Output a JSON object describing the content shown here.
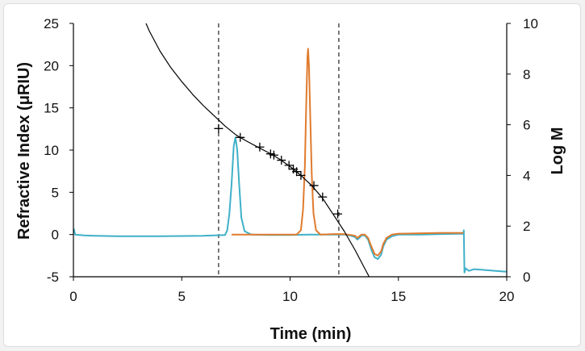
{
  "chart_data": {
    "type": "line",
    "title": "",
    "xlabel": "Time (min)",
    "ylabel_left": "Refractive Index (μRIU)",
    "ylabel_right": "Log M",
    "xlim": [
      0,
      20
    ],
    "ylim_left": [
      -5,
      25
    ],
    "ylim_right": [
      0,
      10
    ],
    "x_ticks": [
      "0",
      "5",
      "10",
      "15",
      "20"
    ],
    "y_left_ticks": [
      "-5",
      "0",
      "5",
      "10",
      "15",
      "20",
      "25"
    ],
    "y_right_ticks": [
      "0",
      "2",
      "4",
      "6",
      "8",
      "10"
    ],
    "grid": false,
    "legend": "none",
    "colors": {
      "blue": "#3fb0c8",
      "orange": "#e07b2e",
      "calibration": "#000000",
      "marker": "#000000",
      "dashed": "#333333"
    },
    "vertical_dashed_lines_x": [
      6.7,
      12.25
    ],
    "series": [
      {
        "axis": "left",
        "color": "#3fb0c8",
        "points": [
          [
            0,
            0.3
          ],
          [
            0.03,
            0.6
          ],
          [
            0.08,
            0
          ],
          [
            0.5,
            -0.1
          ],
          [
            1,
            -0.15
          ],
          [
            2,
            -0.2
          ],
          [
            4,
            -0.2
          ],
          [
            6,
            -0.15
          ],
          [
            7,
            -0.05
          ],
          [
            7.1,
            0.5
          ],
          [
            7.2,
            2.5
          ],
          [
            7.3,
            6
          ],
          [
            7.4,
            10.5
          ],
          [
            7.48,
            11.5
          ],
          [
            7.56,
            10
          ],
          [
            7.65,
            6
          ],
          [
            7.75,
            2
          ],
          [
            7.9,
            0.4
          ],
          [
            8.2,
            0
          ],
          [
            9,
            -0.05
          ],
          [
            10,
            -0.05
          ],
          [
            11,
            0
          ],
          [
            12,
            0
          ],
          [
            12.5,
            0
          ],
          [
            12.8,
            -0.15
          ],
          [
            13,
            -0.3
          ],
          [
            13.1,
            -0.6
          ],
          [
            13.2,
            -0.4
          ],
          [
            13.3,
            -0.1
          ],
          [
            13.45,
            -0.1
          ],
          [
            13.6,
            -0.6
          ],
          [
            13.75,
            -1.8
          ],
          [
            13.9,
            -2.7
          ],
          [
            14.05,
            -2.9
          ],
          [
            14.2,
            -2.4
          ],
          [
            14.3,
            -1.4
          ],
          [
            14.45,
            -0.6
          ],
          [
            14.7,
            -0.2
          ],
          [
            15,
            0
          ],
          [
            16,
            0
          ],
          [
            17,
            0.05
          ],
          [
            18,
            0.1
          ],
          [
            18.02,
            0.5
          ],
          [
            18.05,
            -4.5
          ],
          [
            18.1,
            -4
          ],
          [
            18.25,
            -4.3
          ],
          [
            18.5,
            -4.1
          ],
          [
            19,
            -4.2
          ],
          [
            19.5,
            -4.3
          ],
          [
            20,
            -4.4
          ]
        ]
      },
      {
        "axis": "left",
        "color": "#e07b2e",
        "points": [
          [
            7.3,
            0
          ],
          [
            9,
            0
          ],
          [
            10.3,
            0
          ],
          [
            10.5,
            0.5
          ],
          [
            10.6,
            3
          ],
          [
            10.68,
            8
          ],
          [
            10.74,
            15
          ],
          [
            10.8,
            21
          ],
          [
            10.83,
            22
          ],
          [
            10.87,
            20
          ],
          [
            10.93,
            14
          ],
          [
            11,
            7
          ],
          [
            11.08,
            2.5
          ],
          [
            11.2,
            0.5
          ],
          [
            11.4,
            0
          ],
          [
            12,
            0.05
          ],
          [
            12.5,
            0.05
          ],
          [
            12.8,
            -0.05
          ],
          [
            13,
            -0.15
          ],
          [
            13.1,
            -0.4
          ],
          [
            13.2,
            -0.2
          ],
          [
            13.3,
            0
          ],
          [
            13.45,
            0
          ],
          [
            13.6,
            -0.4
          ],
          [
            13.75,
            -1.4
          ],
          [
            13.9,
            -2.3
          ],
          [
            14.05,
            -2.5
          ],
          [
            14.2,
            -2
          ],
          [
            14.3,
            -1.1
          ],
          [
            14.45,
            -0.4
          ],
          [
            14.7,
            0
          ],
          [
            15,
            0.1
          ],
          [
            16,
            0.15
          ],
          [
            17,
            0.2
          ],
          [
            18,
            0.2
          ]
        ]
      },
      {
        "axis": "right",
        "color": "#000000",
        "points": [
          [
            3,
            10.7
          ],
          [
            3.5,
            9.7
          ],
          [
            4,
            8.9
          ],
          [
            4.5,
            8.25
          ],
          [
            5,
            7.7
          ],
          [
            5.5,
            7.2
          ],
          [
            6,
            6.75
          ],
          [
            6.5,
            6.35
          ],
          [
            7,
            5.95
          ],
          [
            7.5,
            5.6
          ],
          [
            8,
            5.35
          ],
          [
            8.5,
            5.12
          ],
          [
            9,
            4.9
          ],
          [
            9.5,
            4.65
          ],
          [
            10,
            4.35
          ],
          [
            10.5,
            4.0
          ],
          [
            11,
            3.6
          ],
          [
            11.5,
            3.1
          ],
          [
            12,
            2.45
          ],
          [
            12.5,
            1.8
          ],
          [
            13,
            1.05
          ],
          [
            13.4,
            0.4
          ],
          [
            13.65,
            0
          ]
        ]
      }
    ],
    "markers": {
      "axis": "right",
      "shape": "plus",
      "points": [
        [
          6.7,
          5.85
        ],
        [
          7.7,
          5.5
        ],
        [
          8.6,
          5.12
        ],
        [
          9.1,
          4.85
        ],
        [
          9.25,
          4.8
        ],
        [
          9.6,
          4.6
        ],
        [
          9.95,
          4.4
        ],
        [
          10.15,
          4.25
        ],
        [
          10.3,
          4.15
        ],
        [
          10.5,
          4.0
        ],
        [
          11.1,
          3.6
        ],
        [
          11.5,
          3.15
        ],
        [
          12.2,
          2.48
        ]
      ]
    }
  }
}
